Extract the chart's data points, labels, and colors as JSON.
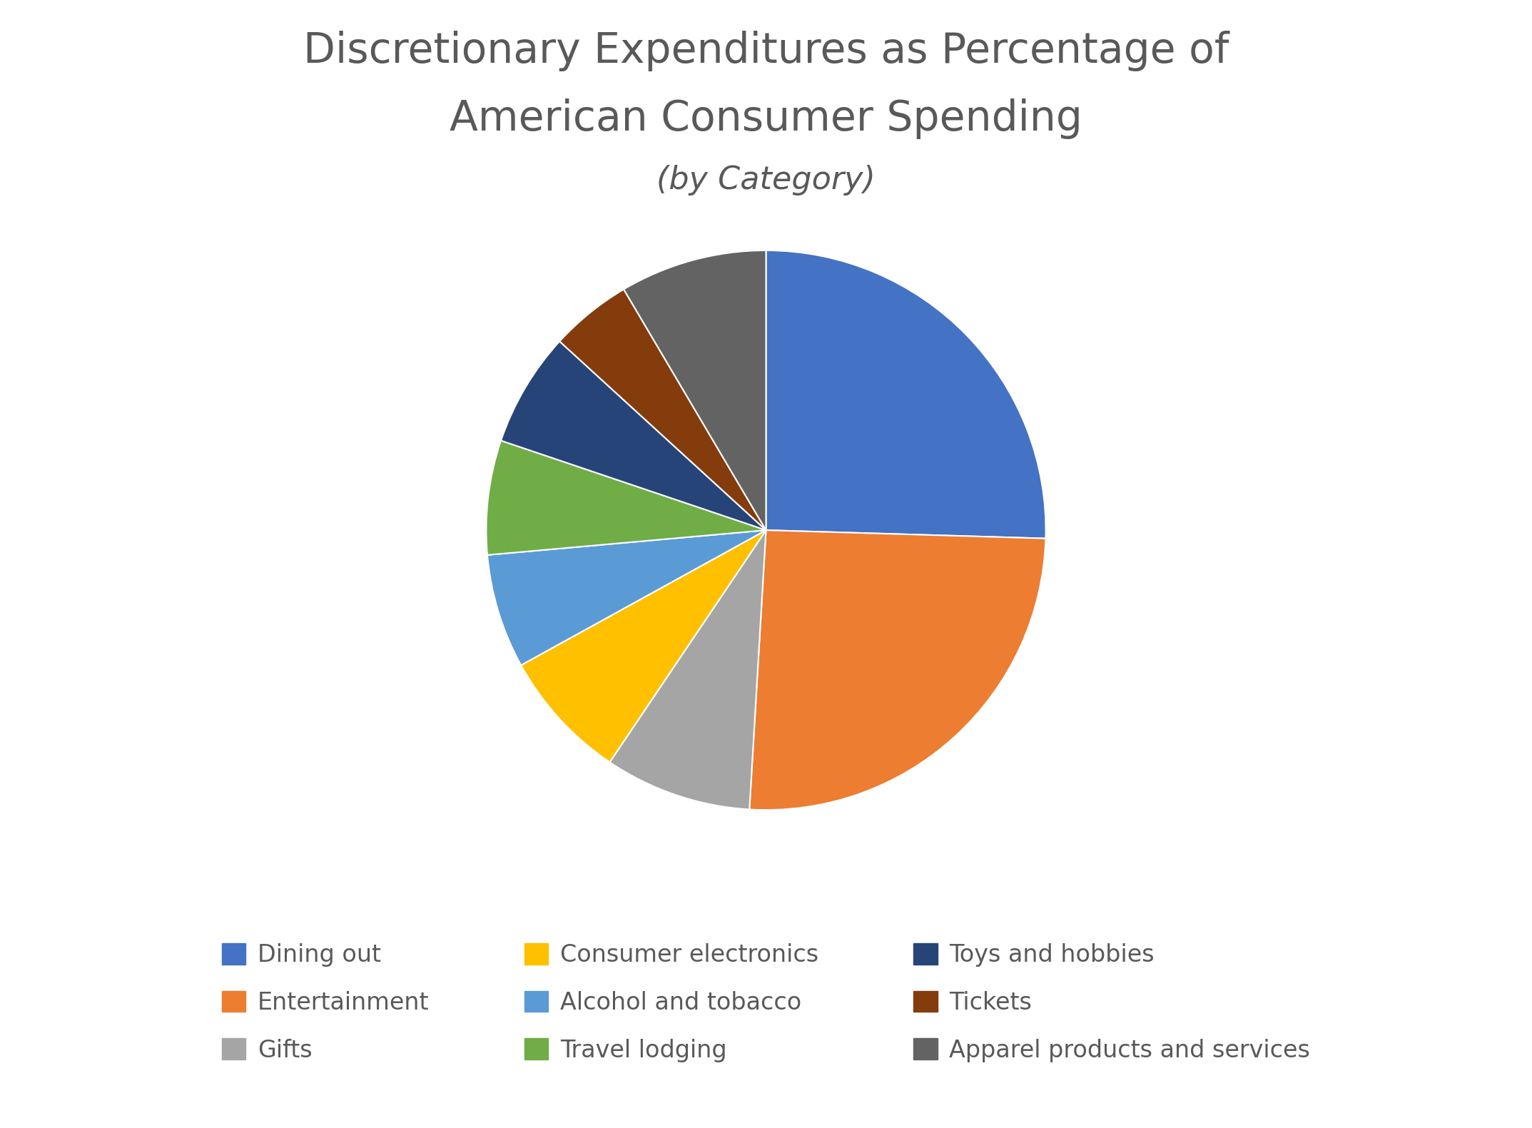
{
  "title_line1": "Discretionary Expenditures as Percentage of",
  "title_line2": "American Consumer Spending",
  "subtitle": "(by Category)",
  "categories": [
    "Dining out",
    "Entertainment",
    "Gifts",
    "Consumer electronics",
    "Alcohol and tobacco",
    "Travel lodging",
    "Toys and hobbies",
    "Tickets",
    "Apparel products and services"
  ],
  "values": [
    27,
    27,
    9,
    8,
    7,
    7,
    7,
    5,
    9
  ],
  "colors": [
    "#4472C4",
    "#ED7D31",
    "#A5A5A5",
    "#FFC000",
    "#5B9BD5",
    "#70AD47",
    "#264478",
    "#843C0C",
    "#636363"
  ],
  "startangle": 90,
  "background_color": "#FFFFFF",
  "title_color": "#595959",
  "legend_fontsize": 24,
  "title_fontsize": 42,
  "subtitle_fontsize": 32
}
